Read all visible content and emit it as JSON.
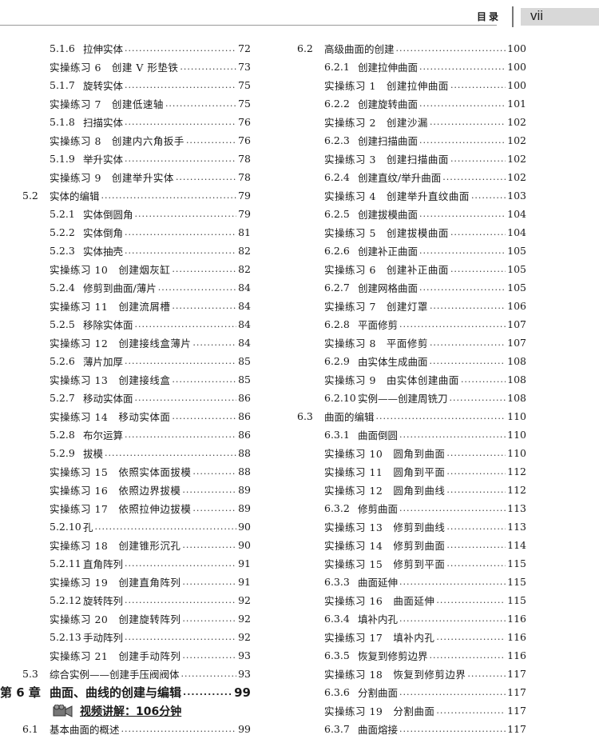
{
  "header": {
    "title": "目录",
    "page": "vii"
  },
  "left": [
    {
      "type": "sub",
      "num": "5.1.6",
      "label": "拉伸实体",
      "page": "72"
    },
    {
      "type": "ex",
      "label": "实操练习 6　创建 V 形垫铁",
      "page": "73"
    },
    {
      "type": "sub",
      "num": "5.1.7",
      "label": "旋转实体",
      "page": "75"
    },
    {
      "type": "ex",
      "label": "实操练习 7　创建低速轴",
      "page": "75"
    },
    {
      "type": "sub",
      "num": "5.1.8",
      "label": "扫描实体",
      "page": "76"
    },
    {
      "type": "ex",
      "label": "实操练习 8　创建内六角扳手",
      "page": "76"
    },
    {
      "type": "sub",
      "num": "5.1.9",
      "label": "举升实体",
      "page": "78"
    },
    {
      "type": "ex",
      "label": "实操练习 9　创建举升实体",
      "page": "78"
    },
    {
      "type": "sec",
      "num": "5.2",
      "label": "实体的编辑",
      "page": "79"
    },
    {
      "type": "sub",
      "num": "5.2.1",
      "label": "实体倒圆角",
      "page": "79"
    },
    {
      "type": "sub",
      "num": "5.2.2",
      "label": "实体倒角",
      "page": "81"
    },
    {
      "type": "sub",
      "num": "5.2.3",
      "label": "实体抽壳",
      "page": "82"
    },
    {
      "type": "ex",
      "label": "实操练习 10　创建烟灰缸",
      "page": "82"
    },
    {
      "type": "sub",
      "num": "5.2.4",
      "label": "修剪到曲面/薄片",
      "page": "84"
    },
    {
      "type": "ex",
      "label": "实操练习 11　创建流屑槽",
      "page": "84"
    },
    {
      "type": "sub",
      "num": "5.2.5",
      "label": "移除实体面",
      "page": "84"
    },
    {
      "type": "ex",
      "label": "实操练习 12　创建接线盒薄片",
      "page": "84"
    },
    {
      "type": "sub",
      "num": "5.2.6",
      "label": "薄片加厚",
      "page": "85"
    },
    {
      "type": "ex",
      "label": "实操练习 13　创建接线盒",
      "page": "85"
    },
    {
      "type": "sub",
      "num": "5.2.7",
      "label": "移动实体面",
      "page": "86"
    },
    {
      "type": "ex",
      "label": "实操练习 14　移动实体面",
      "page": "86"
    },
    {
      "type": "sub",
      "num": "5.2.8",
      "label": "布尔运算",
      "page": "86"
    },
    {
      "type": "sub",
      "num": "5.2.9",
      "label": "拔模",
      "page": "88"
    },
    {
      "type": "ex",
      "label": "实操练习 15　依照实体面拔模",
      "page": "88"
    },
    {
      "type": "ex",
      "label": "实操练习 16　依照边界拔模",
      "page": "89"
    },
    {
      "type": "ex",
      "label": "实操练习 17　依照拉伸边拔模",
      "page": "89"
    },
    {
      "type": "sub",
      "num": "5.2.10",
      "label": "孔",
      "page": "90"
    },
    {
      "type": "ex",
      "label": "实操练习 18　创建锥形沉孔",
      "page": "90"
    },
    {
      "type": "sub",
      "num": "5.2.11",
      "label": "直角阵列",
      "page": "91"
    },
    {
      "type": "ex",
      "label": "实操练习 19　创建直角阵列",
      "page": "91"
    },
    {
      "type": "sub",
      "num": "5.2.12",
      "label": "旋转阵列",
      "page": "92"
    },
    {
      "type": "ex",
      "label": "实操练习 20　创建旋转阵列",
      "page": "92"
    },
    {
      "type": "sub",
      "num": "5.2.13",
      "label": "手动阵列",
      "page": "92"
    },
    {
      "type": "ex",
      "label": "实操练习 21　创建手动阵列",
      "page": "93"
    },
    {
      "type": "sec",
      "num": "5.3",
      "label": "综合实例——创建手压阀阀体",
      "page": "93"
    },
    {
      "type": "chap",
      "num": "第 6 章",
      "label": "曲面、曲线的创建与编辑",
      "page": "99"
    },
    {
      "type": "video",
      "label": "视频讲解：106分钟",
      "icon": "video-camera-icon"
    },
    {
      "type": "sec",
      "num": "6.1",
      "label": "基本曲面的概述",
      "page": "99"
    }
  ],
  "right": [
    {
      "type": "sec",
      "num": "6.2",
      "label": "高级曲面的创建",
      "page": "100"
    },
    {
      "type": "sub",
      "num": "6.2.1",
      "label": "创建拉伸曲面",
      "page": "100"
    },
    {
      "type": "ex",
      "label": "实操练习 1　创建拉伸曲面",
      "page": "100"
    },
    {
      "type": "sub",
      "num": "6.2.2",
      "label": "创建旋转曲面",
      "page": "101"
    },
    {
      "type": "ex",
      "label": "实操练习 2　创建沙漏",
      "page": "102"
    },
    {
      "type": "sub",
      "num": "6.2.3",
      "label": "创建扫描曲面",
      "page": "102"
    },
    {
      "type": "ex",
      "label": "实操练习 3　创建扫描曲面",
      "page": "102"
    },
    {
      "type": "sub",
      "num": "6.2.4",
      "label": "创建直纹/举升曲面",
      "page": "102"
    },
    {
      "type": "ex",
      "label": "实操练习 4　创建举升直纹曲面",
      "page": "103"
    },
    {
      "type": "sub",
      "num": "6.2.5",
      "label": "创建拔模曲面",
      "page": "104"
    },
    {
      "type": "ex",
      "label": "实操练习 5　创建拔模曲面",
      "page": "104"
    },
    {
      "type": "sub",
      "num": "6.2.6",
      "label": "创建补正曲面",
      "page": "105"
    },
    {
      "type": "ex",
      "label": "实操练习 6　创建补正曲面",
      "page": "105"
    },
    {
      "type": "sub",
      "num": "6.2.7",
      "label": "创建网格曲面",
      "page": "105"
    },
    {
      "type": "ex",
      "label": "实操练习 7　创建灯罩",
      "page": "106"
    },
    {
      "type": "sub",
      "num": "6.2.8",
      "label": "平面修剪",
      "page": "107"
    },
    {
      "type": "ex",
      "label": "实操练习 8　平面修剪",
      "page": "107"
    },
    {
      "type": "sub",
      "num": "6.2.9",
      "label": "由实体生成曲面",
      "page": "108"
    },
    {
      "type": "ex",
      "label": "实操练习 9　由实体创建曲面",
      "page": "108"
    },
    {
      "type": "sub",
      "num": "6.2.10",
      "label": "实例——创建周铣刀",
      "page": "108"
    },
    {
      "type": "sec",
      "num": "6.3",
      "label": "曲面的编辑",
      "page": "110"
    },
    {
      "type": "sub",
      "num": "6.3.1",
      "label": "曲面倒圆",
      "page": "110"
    },
    {
      "type": "ex",
      "label": "实操练习 10　圆角到曲面",
      "page": "110"
    },
    {
      "type": "ex",
      "label": "实操练习 11　圆角到平面",
      "page": "112"
    },
    {
      "type": "ex",
      "label": "实操练习 12　圆角到曲线",
      "page": "112"
    },
    {
      "type": "sub",
      "num": "6.3.2",
      "label": "修剪曲面",
      "page": "113"
    },
    {
      "type": "ex",
      "label": "实操练习 13　修剪到曲线",
      "page": "113"
    },
    {
      "type": "ex",
      "label": "实操练习 14　修剪到曲面",
      "page": "114"
    },
    {
      "type": "ex",
      "label": "实操练习 15　修剪到平面",
      "page": "115"
    },
    {
      "type": "sub",
      "num": "6.3.3",
      "label": "曲面延伸",
      "page": "115"
    },
    {
      "type": "ex",
      "label": "实操练习 16　曲面延伸",
      "page": "115"
    },
    {
      "type": "sub",
      "num": "6.3.4",
      "label": "填补内孔",
      "page": "116"
    },
    {
      "type": "ex",
      "label": "实操练习 17　填补内孔",
      "page": "116"
    },
    {
      "type": "sub",
      "num": "6.3.5",
      "label": "恢复到修剪边界",
      "page": "116"
    },
    {
      "type": "ex",
      "label": "实操练习 18　恢复到修剪边界",
      "page": "117"
    },
    {
      "type": "sub",
      "num": "6.3.6",
      "label": "分割曲面",
      "page": "117"
    },
    {
      "type": "ex",
      "label": "实操练习 19　分割曲面",
      "page": "117"
    },
    {
      "type": "sub",
      "num": "6.3.7",
      "label": "曲面熔接",
      "page": "117"
    }
  ]
}
